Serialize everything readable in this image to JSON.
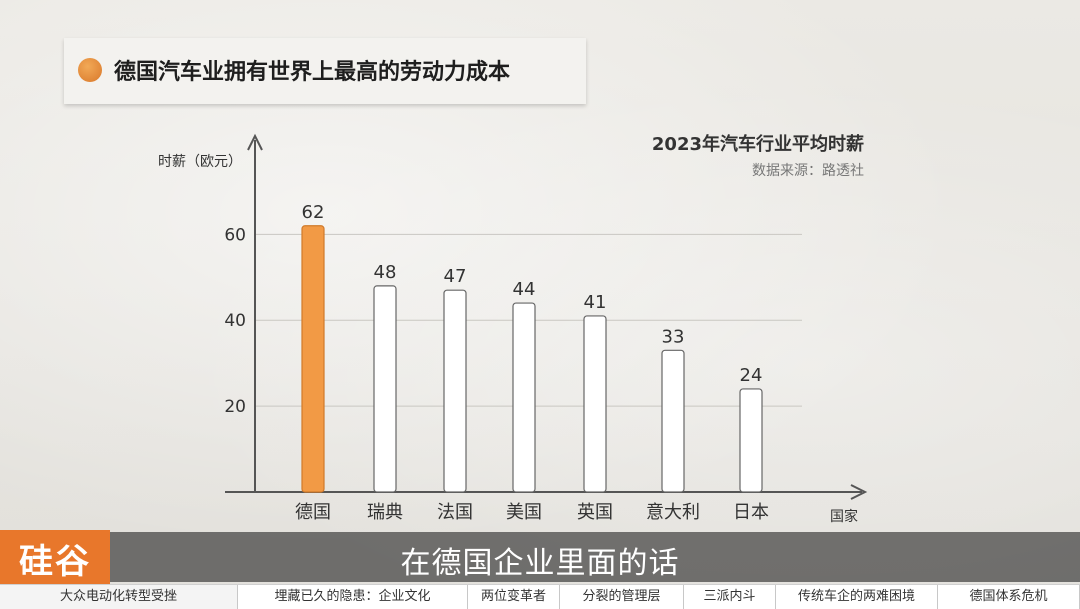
{
  "header": {
    "title": "德国汽车业拥有世界上最高的劳动力成本"
  },
  "chart_data": {
    "type": "bar",
    "title": "2023年汽车行业平均时薪",
    "source": "数据来源：路透社",
    "ylabel": "时薪（欧元）",
    "xlabel": "国家",
    "categories": [
      "德国",
      "瑞典",
      "法国",
      "美国",
      "英国",
      "意大利",
      "日本"
    ],
    "values": [
      62,
      48,
      47,
      44,
      41,
      33,
      24
    ],
    "value_labels": [
      "62",
      "48",
      "47",
      "44",
      "41",
      "33",
      "24"
    ],
    "yticks": [
      "20",
      "40",
      "60"
    ],
    "ytick_values": [
      20,
      40,
      60
    ],
    "ylim": [
      0,
      68
    ],
    "grid": true,
    "highlight_index": 0,
    "colors": {
      "highlight": "#f29a45",
      "bar": "#ffffff",
      "bar_stroke": "#666666"
    }
  },
  "subtitle": "在德国企业里面的话",
  "logo": "硅谷",
  "bottom_nav": [
    "大众电动化转型受挫",
    "埋藏已久的隐患：企业文化",
    "两位变革者",
    "分裂的管理层",
    "三派内斗",
    "传统车企的两难困境",
    "德国体系危机"
  ]
}
